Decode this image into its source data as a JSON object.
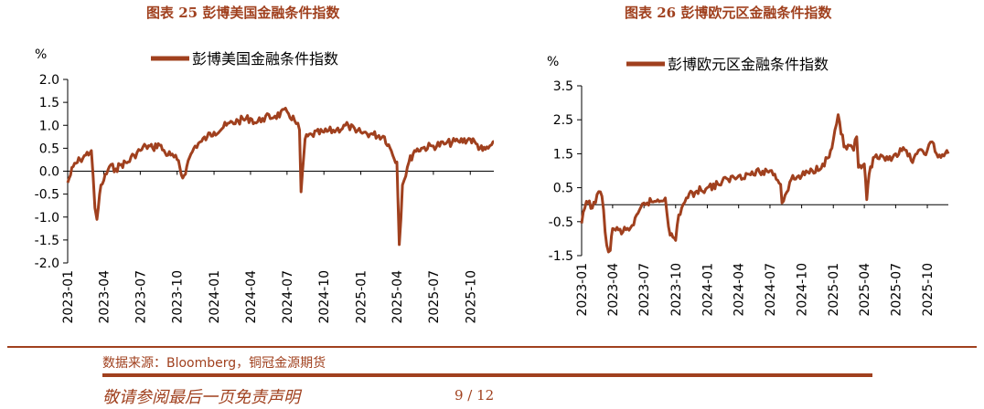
{
  "charts": [
    {
      "title": "图表 25  彭博美国金融条件指数",
      "unit": "%",
      "legend": "彭博美国金融条件指数",
      "line_color": "#A0401E",
      "x_ticks": [
        "2023-01",
        "2023-04",
        "2023-07",
        "2023-10",
        "2024-01",
        "2024-04",
        "2024-07",
        "2024-10",
        "2025-01",
        "2025-04",
        "2025-07",
        "2025-10"
      ],
      "y_ticks": [
        "2.0",
        "1.5",
        "1.0",
        "0.5",
        "0.0",
        "-0.5",
        "-1.0",
        "-1.5",
        "-2.0"
      ]
    },
    {
      "title": "图表 26  彭博欧元区金融条件指数",
      "unit": "%",
      "legend": "彭博欧元区金融条件指数",
      "line_color": "#A0401E",
      "x_ticks": [
        "2023-01",
        "2023-04",
        "2023-07",
        "2023-10",
        "2024-01",
        "2024-04",
        "2024-07",
        "2024-10",
        "2025-01",
        "2025-04",
        "2025-07",
        "2025-10"
      ],
      "y_ticks": [
        "3.5",
        "2.5",
        "1.5",
        "0.5",
        "-0.5",
        "-1.5"
      ]
    }
  ],
  "chart_data": [
    {
      "type": "line",
      "title": "图表 25  彭博美国金融条件指数",
      "ylabel": "%",
      "ylim": [
        -2.0,
        2.0
      ],
      "x_range": [
        "2023-01",
        "2025-12"
      ],
      "legend_position": "top",
      "series": [
        {
          "name": "彭博美国金融条件指数",
          "x": [
            "2023-01",
            "2023-01-15",
            "2023-02",
            "2023-02-15",
            "2023-03",
            "2023-03-10",
            "2023-03-15",
            "2023-03-25",
            "2023-04",
            "2023-04-15",
            "2023-05",
            "2023-05-15",
            "2023-06",
            "2023-06-15",
            "2023-07",
            "2023-07-15",
            "2023-08",
            "2023-08-15",
            "2023-09",
            "2023-09-15",
            "2023-10",
            "2023-10-15",
            "2023-10-25",
            "2023-11",
            "2023-11-15",
            "2023-12",
            "2023-12-15",
            "2024-01",
            "2024-02",
            "2024-03",
            "2024-04",
            "2024-04-15",
            "2024-05",
            "2024-06",
            "2024-07",
            "2024-07-20",
            "2024-08",
            "2024-08-05",
            "2024-08-15",
            "2024-09",
            "2024-10",
            "2024-11",
            "2024-12",
            "2024-12-20",
            "2025-01",
            "2025-02",
            "2025-03",
            "2025-03-15",
            "2025-04",
            "2025-04-07",
            "2025-04-15",
            "2025-05",
            "2025-05-15",
            "2025-06",
            "2025-07",
            "2025-08",
            "2025-09",
            "2025-10",
            "2025-10-15",
            "2025-11",
            "2025-11-15",
            "2025-12"
          ],
          "values": [
            -0.25,
            0.1,
            0.25,
            0.35,
            0.45,
            -0.8,
            -1.05,
            -0.3,
            -0.2,
            0.1,
            0.05,
            0.15,
            0.2,
            0.35,
            0.45,
            0.55,
            0.5,
            0.6,
            0.4,
            0.35,
            0.25,
            -0.15,
            0.1,
            0.3,
            0.55,
            0.65,
            0.75,
            0.85,
            1.0,
            1.1,
            1.15,
            1.05,
            1.15,
            1.2,
            1.3,
            1.1,
            0.9,
            -0.45,
            0.7,
            0.8,
            0.85,
            0.9,
            1.0,
            0.85,
            0.85,
            0.8,
            0.75,
            0.5,
            0.2,
            -1.6,
            -0.3,
            0.2,
            0.45,
            0.5,
            0.55,
            0.6,
            0.65,
            0.7,
            0.6,
            0.45,
            0.5,
            0.65
          ]
        }
      ]
    },
    {
      "type": "line",
      "title": "图表 26  彭博欧元区金融条件指数",
      "ylabel": "%",
      "ylim": [
        -1.5,
        3.5
      ],
      "x_range": [
        "2023-01",
        "2025-12"
      ],
      "legend_position": "top",
      "series": [
        {
          "name": "彭博欧元区金融条件指数",
          "x": [
            "2023-01",
            "2023-01-15",
            "2023-02",
            "2023-02-15",
            "2023-03",
            "2023-03-15",
            "2023-03-25",
            "2023-04",
            "2023-05",
            "2023-06",
            "2023-07",
            "2023-08",
            "2023-09",
            "2023-09-15",
            "2023-10",
            "2023-10-10",
            "2023-11",
            "2023-12",
            "2024-01",
            "2024-02",
            "2024-03",
            "2024-04",
            "2024-05",
            "2024-06",
            "2024-07",
            "2024-07-15",
            "2024-08",
            "2024-08-05",
            "2024-09",
            "2024-10",
            "2024-11",
            "2024-12",
            "2024-12-20",
            "2025-01",
            "2025-01-15",
            "2025-02",
            "2025-03",
            "2025-03-10",
            "2025-03-15",
            "2025-04",
            "2025-04-08",
            "2025-04-15",
            "2025-05",
            "2025-06",
            "2025-07",
            "2025-08",
            "2025-08-15",
            "2025-09",
            "2025-10",
            "2025-10-15",
            "2025-11",
            "2025-12"
          ],
          "values": [
            -0.55,
            0.1,
            -0.1,
            0.3,
            0.25,
            -1.2,
            -1.35,
            -0.7,
            -0.8,
            -0.6,
            0.05,
            0.1,
            0.2,
            -0.9,
            -1.05,
            -0.3,
            0.2,
            0.4,
            0.5,
            0.6,
            0.75,
            0.85,
            0.9,
            0.95,
            1.0,
            0.9,
            0.6,
            0.05,
            0.75,
            0.85,
            1.0,
            1.2,
            1.4,
            1.9,
            2.65,
            1.7,
            1.6,
            2.0,
            1.1,
            1.2,
            0.15,
            0.9,
            1.4,
            1.3,
            1.5,
            1.6,
            1.3,
            1.5,
            1.6,
            1.85,
            1.4,
            1.5
          ]
        }
      ]
    }
  ],
  "footer": {
    "source": "数据来源：Bloomberg，铜冠金源期货",
    "disclaimer": "敬请参阅最后一页免责声明",
    "page": "9  /  12"
  }
}
